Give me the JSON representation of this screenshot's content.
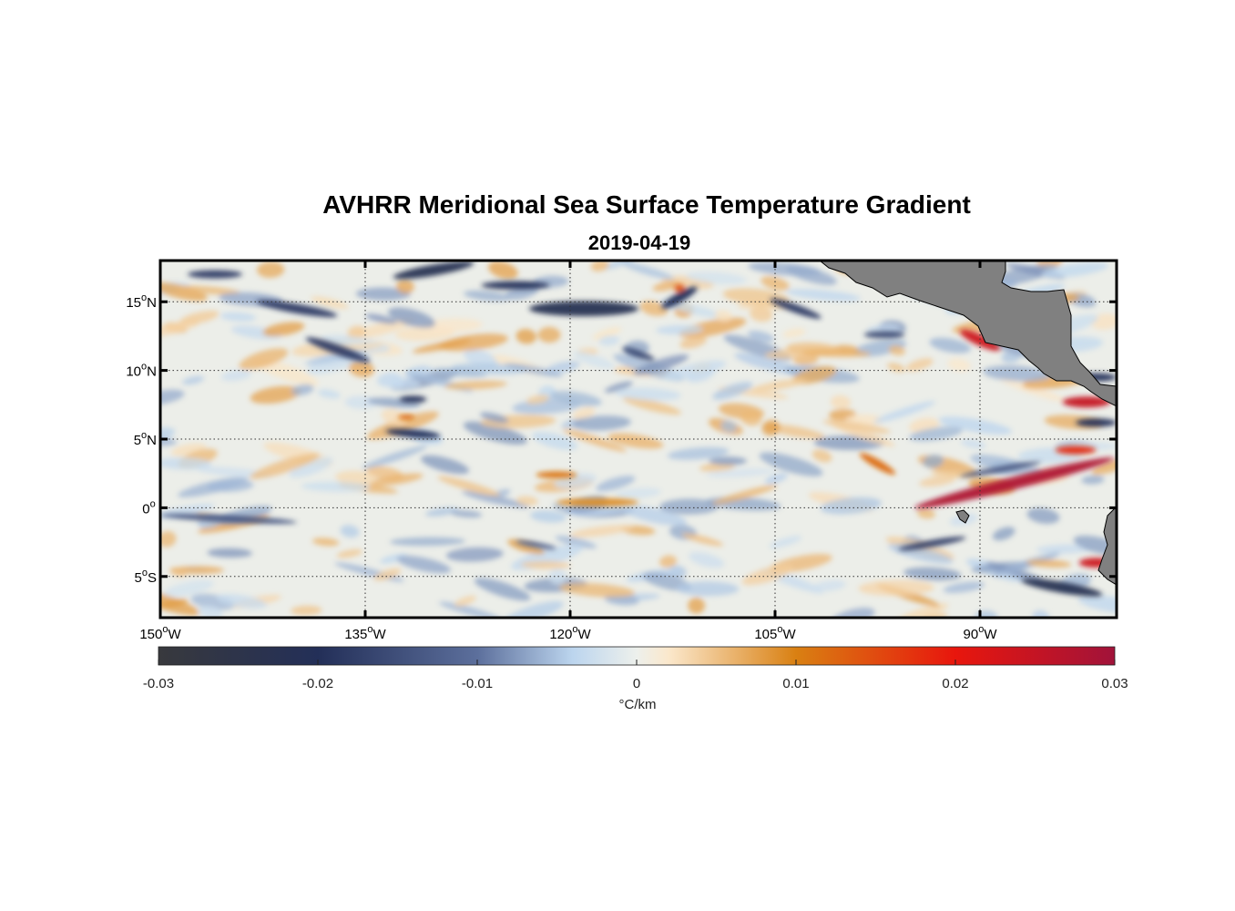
{
  "figure": {
    "title": "AVHRR Meridional Sea Surface Temperature Gradient",
    "date": "2019-04-19"
  },
  "map": {
    "lon_range": [
      -150,
      -80
    ],
    "lat_range": [
      -8,
      18
    ],
    "lon_ticks": [
      {
        "value": -150,
        "deg": "150",
        "hemi": "W"
      },
      {
        "value": -135,
        "deg": "135",
        "hemi": "W"
      },
      {
        "value": -120,
        "deg": "120",
        "hemi": "W"
      },
      {
        "value": -105,
        "deg": "105",
        "hemi": "W"
      },
      {
        "value": -90,
        "deg": "90",
        "hemi": "W"
      }
    ],
    "lat_ticks": [
      {
        "value": 15,
        "deg": "15",
        "hemi": "N"
      },
      {
        "value": 10,
        "deg": "10",
        "hemi": "N"
      },
      {
        "value": 5,
        "deg": "5",
        "hemi": "N"
      },
      {
        "value": 0,
        "deg": "0",
        "hemi": ""
      },
      {
        "value": -5,
        "deg": "5",
        "hemi": "S"
      }
    ],
    "grid": "dotted",
    "land_color": "#808080",
    "features": [
      {
        "type": "positive",
        "lon": -87.5,
        "lat": 1.8,
        "len_lon": 15,
        "w_lat": 0.9,
        "angle": -14,
        "strength": 0.028
      },
      {
        "type": "positive",
        "lon": -90,
        "lat": 12.2,
        "len_lon": 3.2,
        "w_lat": 0.8,
        "angle": 25,
        "strength": 0.024
      },
      {
        "type": "positive",
        "lon": -82.2,
        "lat": 7.7,
        "len_lon": 3.5,
        "w_lat": 0.8,
        "angle": 0,
        "strength": 0.025
      },
      {
        "type": "positive",
        "lon": -81.5,
        "lat": -4,
        "len_lon": 2.5,
        "w_lat": 0.7,
        "angle": 0,
        "strength": 0.024
      },
      {
        "type": "positive",
        "lon": -83,
        "lat": 4.2,
        "len_lon": 3,
        "w_lat": 0.6,
        "angle": 0,
        "strength": 0.018
      },
      {
        "type": "positive",
        "lon": -97.5,
        "lat": 3.2,
        "len_lon": 3,
        "w_lat": 0.6,
        "angle": 30,
        "strength": 0.012
      },
      {
        "type": "positive",
        "lon": -118,
        "lat": 0.4,
        "len_lon": 6,
        "w_lat": 0.6,
        "angle": 0,
        "strength": 0.009
      },
      {
        "type": "positive",
        "lon": -121,
        "lat": 2.4,
        "len_lon": 3,
        "w_lat": 0.5,
        "angle": 0,
        "strength": 0.011
      },
      {
        "type": "positive",
        "lon": -112,
        "lat": 16,
        "len_lon": 0.8,
        "w_lat": 0.6,
        "angle": 0,
        "strength": 0.014
      },
      {
        "type": "positive",
        "lon": -132,
        "lat": 6.6,
        "len_lon": 1.2,
        "w_lat": 0.4,
        "angle": 0,
        "strength": 0.012
      },
      {
        "type": "negative",
        "lon": -131.5,
        "lat": 5.4,
        "len_lon": 4,
        "w_lat": 0.6,
        "angle": 5,
        "strength": 0.02
      },
      {
        "type": "negative",
        "lon": -131.5,
        "lat": 7.9,
        "len_lon": 2,
        "w_lat": 0.5,
        "angle": 0,
        "strength": 0.02
      },
      {
        "type": "negative",
        "lon": -119,
        "lat": 14.5,
        "len_lon": 8,
        "w_lat": 1.1,
        "angle": 0,
        "strength": 0.022
      },
      {
        "type": "negative",
        "lon": -130,
        "lat": 17.3,
        "len_lon": 6,
        "w_lat": 0.8,
        "angle": -10,
        "strength": 0.022
      },
      {
        "type": "negative",
        "lon": -140,
        "lat": 14.5,
        "len_lon": 6,
        "w_lat": 0.7,
        "angle": 10,
        "strength": 0.018
      },
      {
        "type": "negative",
        "lon": -137,
        "lat": 11.5,
        "len_lon": 5,
        "w_lat": 0.7,
        "angle": 20,
        "strength": 0.018
      },
      {
        "type": "negative",
        "lon": -146,
        "lat": 17,
        "len_lon": 4,
        "w_lat": 0.6,
        "angle": 0,
        "strength": 0.018
      },
      {
        "type": "negative",
        "lon": -112,
        "lat": 15.3,
        "len_lon": 3,
        "w_lat": 0.7,
        "angle": -30,
        "strength": 0.02
      },
      {
        "type": "negative",
        "lon": -124,
        "lat": 16.2,
        "len_lon": 5,
        "w_lat": 0.6,
        "angle": 0,
        "strength": 0.02
      },
      {
        "type": "negative",
        "lon": -103.5,
        "lat": 14.5,
        "len_lon": 4,
        "w_lat": 0.6,
        "angle": 20,
        "strength": 0.018
      },
      {
        "type": "negative",
        "lon": -145,
        "lat": -0.8,
        "len_lon": 10,
        "w_lat": 0.5,
        "angle": 3,
        "strength": 0.014
      },
      {
        "type": "negative",
        "lon": -93.5,
        "lat": -2.6,
        "len_lon": 5,
        "w_lat": 0.5,
        "angle": -10,
        "strength": 0.018
      },
      {
        "type": "negative",
        "lon": -84,
        "lat": -5.8,
        "len_lon": 6,
        "w_lat": 0.8,
        "angle": 10,
        "strength": 0.022
      },
      {
        "type": "negative",
        "lon": -81.5,
        "lat": 6.2,
        "len_lon": 3,
        "w_lat": 0.6,
        "angle": 0,
        "strength": 0.02
      },
      {
        "type": "negative",
        "lon": -81.5,
        "lat": 9.5,
        "len_lon": 3,
        "w_lat": 0.6,
        "angle": 0,
        "strength": 0.02
      },
      {
        "type": "negative",
        "lon": -88.5,
        "lat": 2.8,
        "len_lon": 6,
        "w_lat": 0.4,
        "angle": -10,
        "strength": 0.015
      },
      {
        "type": "negative",
        "lon": -115,
        "lat": 11.2,
        "len_lon": 2.5,
        "w_lat": 0.5,
        "angle": 20,
        "strength": 0.016
      },
      {
        "type": "negative",
        "lon": -97,
        "lat": 12.6,
        "len_lon": 3,
        "w_lat": 0.5,
        "angle": 0,
        "strength": 0.016
      },
      {
        "type": "negative",
        "lon": -122.5,
        "lat": -2.7,
        "len_lon": 3,
        "w_lat": 0.4,
        "angle": 10,
        "strength": 0.012
      }
    ]
  },
  "colorbar": {
    "min": -0.03,
    "max": 0.03,
    "ticks": [
      "-0.03",
      "-0.02",
      "-0.01",
      "0",
      "0.01",
      "0.02",
      "0.03"
    ],
    "label": "°C/km",
    "stops": [
      {
        "v": -0.03,
        "color": "#38393d"
      },
      {
        "v": -0.02,
        "color": "#232f58"
      },
      {
        "v": -0.01,
        "color": "#5c6f9c"
      },
      {
        "v": -0.004,
        "color": "#bcd5ee"
      },
      {
        "v": 0.0,
        "color": "#edf0ec"
      },
      {
        "v": 0.002,
        "color": "#fbe8cc"
      },
      {
        "v": 0.01,
        "color": "#d98012"
      },
      {
        "v": 0.02,
        "color": "#e8160d"
      },
      {
        "v": 0.03,
        "color": "#a1133a"
      }
    ]
  }
}
